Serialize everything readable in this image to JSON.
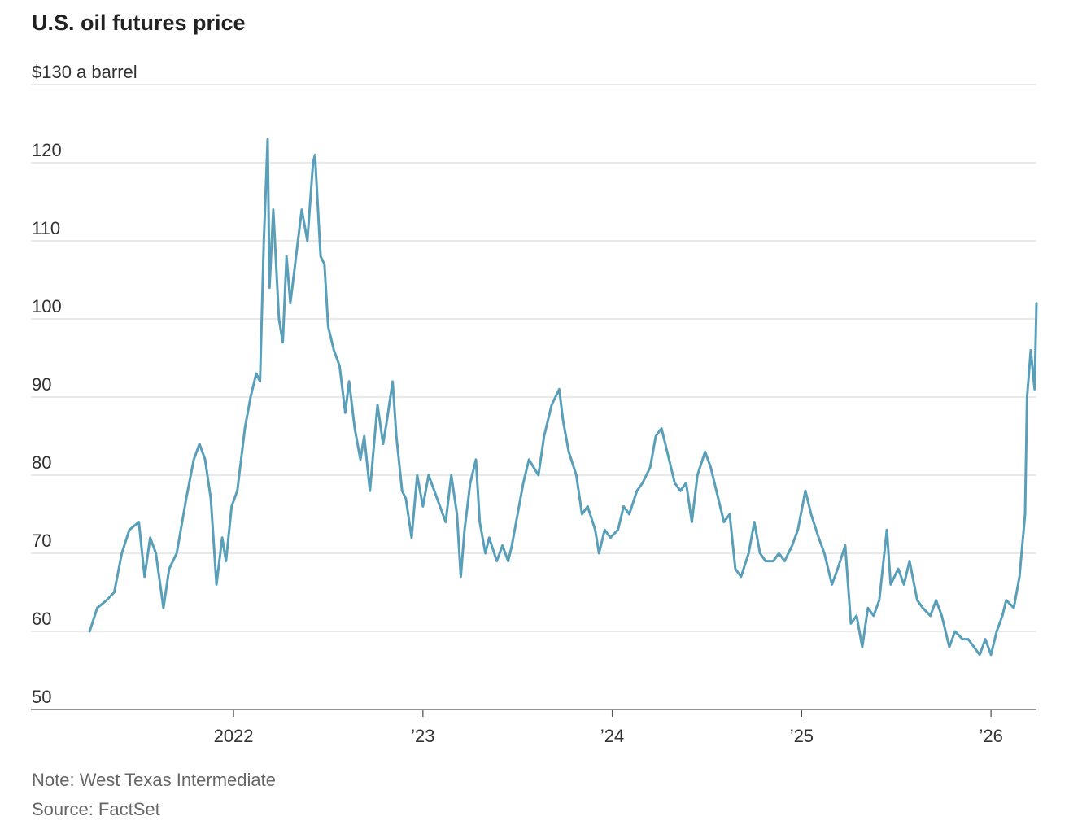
{
  "chart_data": {
    "type": "line",
    "title": "U.S. oil futures price",
    "note": "Note: West Texas Intermediate",
    "source": "Source: FactSet",
    "color": "#5a9fba",
    "grid": true,
    "xlim": [
      2020.93,
      2026.24
    ],
    "xticks": [
      {
        "value": 2022,
        "label": "2022"
      },
      {
        "value": 2023,
        "label": "’23"
      },
      {
        "value": 2024,
        "label": "’24"
      },
      {
        "value": 2025,
        "label": "’25"
      },
      {
        "value": 2026,
        "label": "’26"
      }
    ],
    "ylim": [
      50,
      130
    ],
    "yticks": [
      50,
      60,
      70,
      80,
      90,
      100,
      110,
      120,
      {
        "value": 130,
        "label": "$130 a barrel"
      }
    ],
    "x": [
      2021.24,
      2021.28,
      2021.33,
      2021.37,
      2021.41,
      2021.45,
      2021.5,
      2021.53,
      2021.56,
      2021.59,
      2021.63,
      2021.66,
      2021.7,
      2021.75,
      2021.79,
      2021.82,
      2021.85,
      2021.88,
      2021.91,
      2021.94,
      2021.96,
      2021.99,
      2022.02,
      2022.06,
      2022.09,
      2022.12,
      2022.14,
      2022.16,
      2022.18,
      2022.19,
      2022.21,
      2022.24,
      2022.26,
      2022.28,
      2022.3,
      2022.33,
      2022.36,
      2022.39,
      2022.42,
      2022.43,
      2022.46,
      2022.48,
      2022.5,
      2022.53,
      2022.56,
      2022.59,
      2022.61,
      2022.64,
      2022.67,
      2022.69,
      2022.72,
      2022.76,
      2022.79,
      2022.81,
      2022.84,
      2022.86,
      2022.89,
      2022.91,
      2022.94,
      2022.97,
      2023.0,
      2023.03,
      2023.06,
      2023.09,
      2023.12,
      2023.15,
      2023.18,
      2023.2,
      2023.22,
      2023.25,
      2023.28,
      2023.3,
      2023.33,
      2023.35,
      2023.39,
      2023.42,
      2023.45,
      2023.47,
      2023.5,
      2023.53,
      2023.56,
      2023.61,
      2023.64,
      2023.68,
      2023.72,
      2023.74,
      2023.77,
      2023.81,
      2023.84,
      2023.87,
      2023.91,
      2023.93,
      2023.96,
      2023.99,
      2024.03,
      2024.06,
      2024.09,
      2024.13,
      2024.16,
      2024.2,
      2024.23,
      2024.26,
      2024.29,
      2024.33,
      2024.36,
      2024.39,
      2024.42,
      2024.45,
      2024.49,
      2024.52,
      2024.56,
      2024.59,
      2024.62,
      2024.65,
      2024.68,
      2024.72,
      2024.75,
      2024.78,
      2024.81,
      2024.85,
      2024.88,
      2024.91,
      2024.95,
      2024.98,
      2025.02,
      2025.05,
      2025.09,
      2025.12,
      2025.16,
      2025.19,
      2025.23,
      2025.26,
      2025.29,
      2025.32,
      2025.35,
      2025.38,
      2025.41,
      2025.45,
      2025.47,
      2025.51,
      2025.54,
      2025.57,
      2025.61,
      2025.64,
      2025.68,
      2025.71,
      2025.74,
      2025.78,
      2025.81,
      2025.85,
      2025.88,
      2025.91,
      2025.94,
      2025.97,
      2026.0,
      2026.03,
      2026.06,
      2026.08,
      2026.12,
      2026.15,
      2026.18,
      2026.19,
      2026.21,
      2026.23,
      2026.24
    ],
    "values": [
      60,
      63,
      64,
      65,
      70,
      73,
      74,
      67,
      72,
      70,
      63,
      68,
      70,
      77,
      82,
      84,
      82,
      77,
      66,
      72,
      69,
      76,
      78,
      86,
      90,
      93,
      92,
      110,
      123,
      104,
      114,
      100,
      97,
      108,
      102,
      108,
      114,
      110,
      120,
      121,
      108,
      107,
      99,
      96,
      94,
      88,
      92,
      86,
      82,
      85,
      78,
      89,
      84,
      87,
      92,
      85,
      78,
      77,
      72,
      80,
      76,
      80,
      78,
      76,
      74,
      80,
      75,
      67,
      73,
      79,
      82,
      74,
      70,
      72,
      69,
      71,
      69,
      71,
      75,
      79,
      82,
      80,
      85,
      89,
      91,
      87,
      83,
      80,
      75,
      76,
      73,
      70,
      73,
      72,
      73,
      76,
      75,
      78,
      79,
      81,
      85,
      86,
      83,
      79,
      78,
      79,
      74,
      80,
      83,
      81,
      77,
      74,
      75,
      68,
      67,
      70,
      74,
      70,
      69,
      69,
      70,
      69,
      71,
      73,
      78,
      75,
      72,
      70,
      66,
      68,
      71,
      61,
      62,
      58,
      63,
      62,
      64,
      73,
      66,
      68,
      66,
      69,
      64,
      63,
      62,
      64,
      62,
      58,
      60,
      59,
      59,
      58,
      57,
      59,
      57,
      60,
      62,
      64,
      63,
      67,
      75,
      90,
      96,
      91,
      102
    ]
  }
}
